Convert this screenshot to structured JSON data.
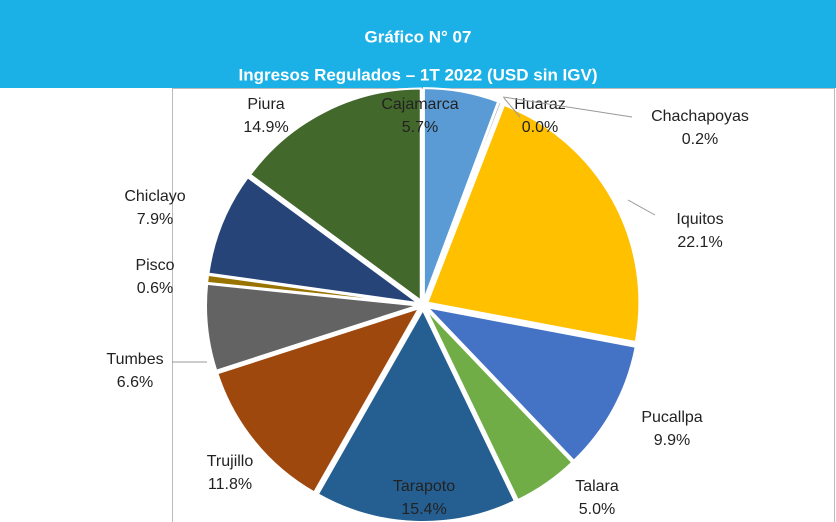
{
  "chart_data": {
    "type": "pie",
    "title": "Gráfico N° 07",
    "subtitle": "Ingresos Regulados – 1T 2022 (USD sin IGV)",
    "categories": [
      "Cajamarca",
      "Huaraz",
      "Chachapoyas",
      "Iquitos",
      "Pucallpa",
      "Talara",
      "Tarapoto",
      "Trujillo",
      "Tumbes",
      "Pisco",
      "Chiclayo",
      "Piura"
    ],
    "values": [
      5.7,
      0.0,
      0.2,
      22.1,
      9.9,
      5.0,
      15.4,
      11.8,
      6.6,
      0.6,
      7.9,
      14.9
    ],
    "value_labels": [
      "5.7%",
      "0.0%",
      "0.2%",
      "22.1%",
      "9.9%",
      "5.0%",
      "15.4%",
      "11.8%",
      "6.6%",
      "0.6%",
      "7.9%",
      "14.9%"
    ],
    "colors": [
      "#5b9bd5",
      "#ed7d31",
      "#a5a5a5",
      "#ffc000",
      "#4472c4",
      "#70ad47",
      "#255e91",
      "#9e480e",
      "#636363",
      "#997300",
      "#264478",
      "#43682b"
    ]
  }
}
